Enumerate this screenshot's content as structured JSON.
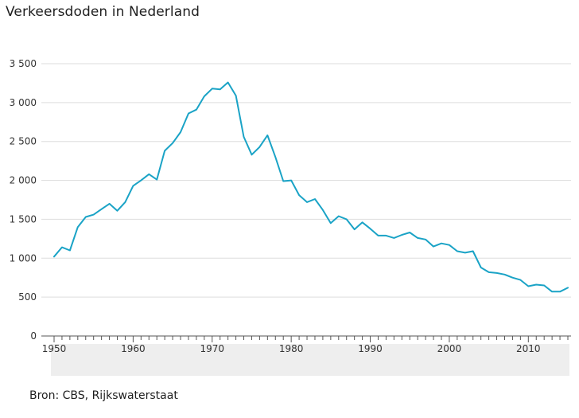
{
  "title": "Verkeersdoden in Nederland",
  "source": "Bron: CBS, Rijkswaterstaat",
  "colors": {
    "line": "#1aa3c6",
    "grid": "#dddddd",
    "axis": "#555555",
    "timeline_band": "#eeeeee"
  },
  "chart_data": {
    "type": "line",
    "title": "Verkeersdoden in Nederland",
    "xlabel": "",
    "ylabel": "",
    "xlim": [
      1950,
      2015
    ],
    "ylim": [
      0,
      3500
    ],
    "grid": true,
    "y_ticks": [
      0,
      500,
      1000,
      1500,
      2000,
      2500,
      3000,
      3500
    ],
    "y_tick_labels": [
      "0",
      "500",
      "1 000",
      "1 500",
      "2 000",
      "2 500",
      "3 000",
      "3 500"
    ],
    "x_ticks": [
      1950,
      1960,
      1970,
      1980,
      1990,
      2000,
      2010
    ],
    "x_tick_labels": [
      "1950",
      "1960",
      "1970",
      "1980",
      "1990",
      "2000",
      "2010"
    ],
    "series": [
      {
        "x": [
          1950,
          1951,
          1952,
          1953,
          1954,
          1955,
          1956,
          1957,
          1958,
          1959,
          1960,
          1961,
          1962,
          1963,
          1964,
          1965,
          1966,
          1967,
          1968,
          1969,
          1970,
          1971,
          1972,
          1973,
          1974,
          1975,
          1976,
          1977,
          1978,
          1979,
          1980,
          1981,
          1982,
          1983,
          1984,
          1985,
          1986,
          1987,
          1988,
          1989,
          1990,
          1991,
          1992,
          1993,
          1994,
          1995,
          1996,
          1997,
          1998,
          1999,
          2000,
          2001,
          2002,
          2003,
          2004,
          2005,
          2006,
          2007,
          2008,
          2009,
          2010,
          2011,
          2012,
          2013,
          2014,
          2015
        ],
        "values": [
          1020,
          1140,
          1100,
          1400,
          1530,
          1560,
          1630,
          1700,
          1610,
          1720,
          1930,
          2000,
          2080,
          2010,
          2380,
          2480,
          2620,
          2860,
          2910,
          3080,
          3180,
          3170,
          3260,
          3090,
          2560,
          2330,
          2430,
          2580,
          2300,
          1990,
          2000,
          1810,
          1720,
          1760,
          1620,
          1450,
          1540,
          1500,
          1370,
          1460,
          1380,
          1290,
          1290,
          1260,
          1300,
          1330,
          1260,
          1240,
          1150,
          1190,
          1170,
          1090,
          1070,
          1090,
          880,
          820,
          810,
          790,
          750,
          720,
          640,
          660,
          650,
          570,
          570,
          620
        ]
      }
    ]
  }
}
